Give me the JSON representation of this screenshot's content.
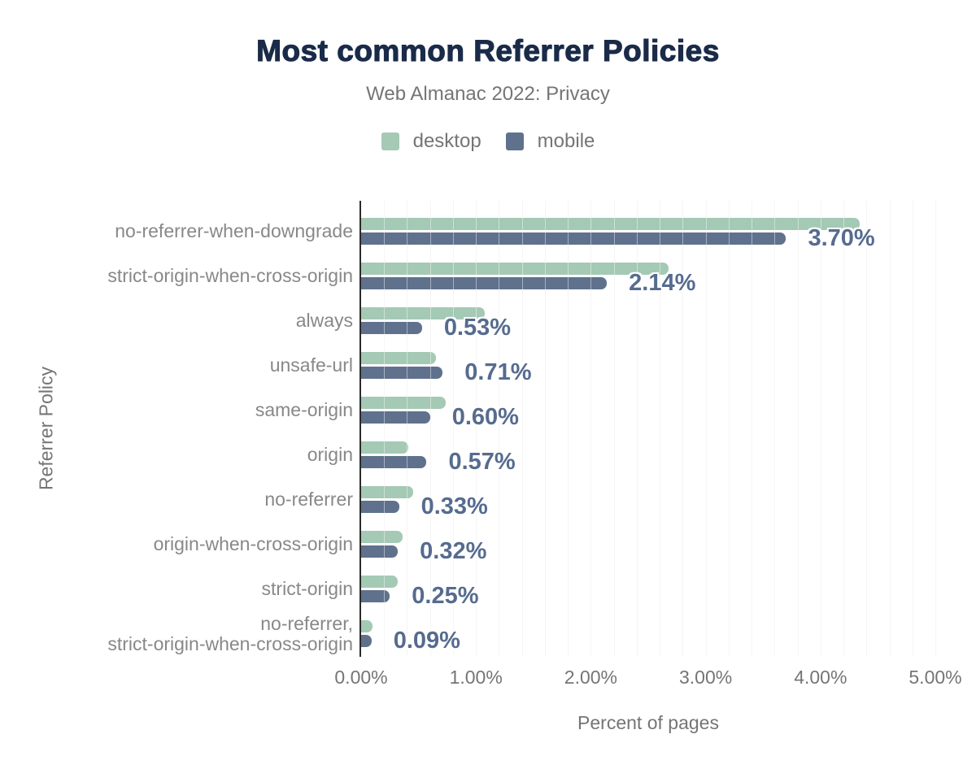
{
  "chart_data": {
    "type": "bar",
    "orientation": "horizontal",
    "title": "Most common Referrer Policies",
    "subtitle": "Web Almanac 2022: Privacy",
    "xlabel": "Percent of pages",
    "ylabel": "Referrer Policy",
    "xlim": [
      0,
      5
    ],
    "x_ticks": [
      "0.00%",
      "1.00%",
      "2.00%",
      "3.00%",
      "4.00%",
      "5.00%"
    ],
    "grid": {
      "minor_step_percent": 0.2,
      "gridlines": "on"
    },
    "legend_position": "top-center",
    "categories": [
      "no-referrer-when-downgrade",
      "strict-origin-when-cross-origin",
      "always",
      "unsafe-url",
      "same-origin",
      "origin",
      "no-referrer",
      "origin-when-cross-origin",
      "strict-origin",
      "no-referrer,\nstrict-origin-when-cross-origin"
    ],
    "series": [
      {
        "name": "desktop",
        "color": "#a4c9b4",
        "values": [
          4.34,
          2.68,
          1.08,
          0.65,
          0.74,
          0.41,
          0.45,
          0.36,
          0.32,
          0.1
        ]
      },
      {
        "name": "mobile",
        "color": "#5f718d",
        "values": [
          3.7,
          2.14,
          0.53,
          0.71,
          0.6,
          0.57,
          0.33,
          0.32,
          0.25,
          0.09
        ]
      }
    ],
    "annotations": [
      "3.70%",
      "2.14%",
      "0.53%",
      "0.71%",
      "0.60%",
      "0.57%",
      "0.33%",
      "0.32%",
      "0.25%",
      "0.09%"
    ],
    "annotation_series": "mobile",
    "colors": {
      "title": "#1a2b49",
      "subtitle": "#757575",
      "annotation": "#566b8f",
      "axis": "#2b2b2b",
      "gridline": "#ededed",
      "tick_text": "#757575",
      "category_text": "#888888",
      "background": "#ffffff"
    }
  }
}
